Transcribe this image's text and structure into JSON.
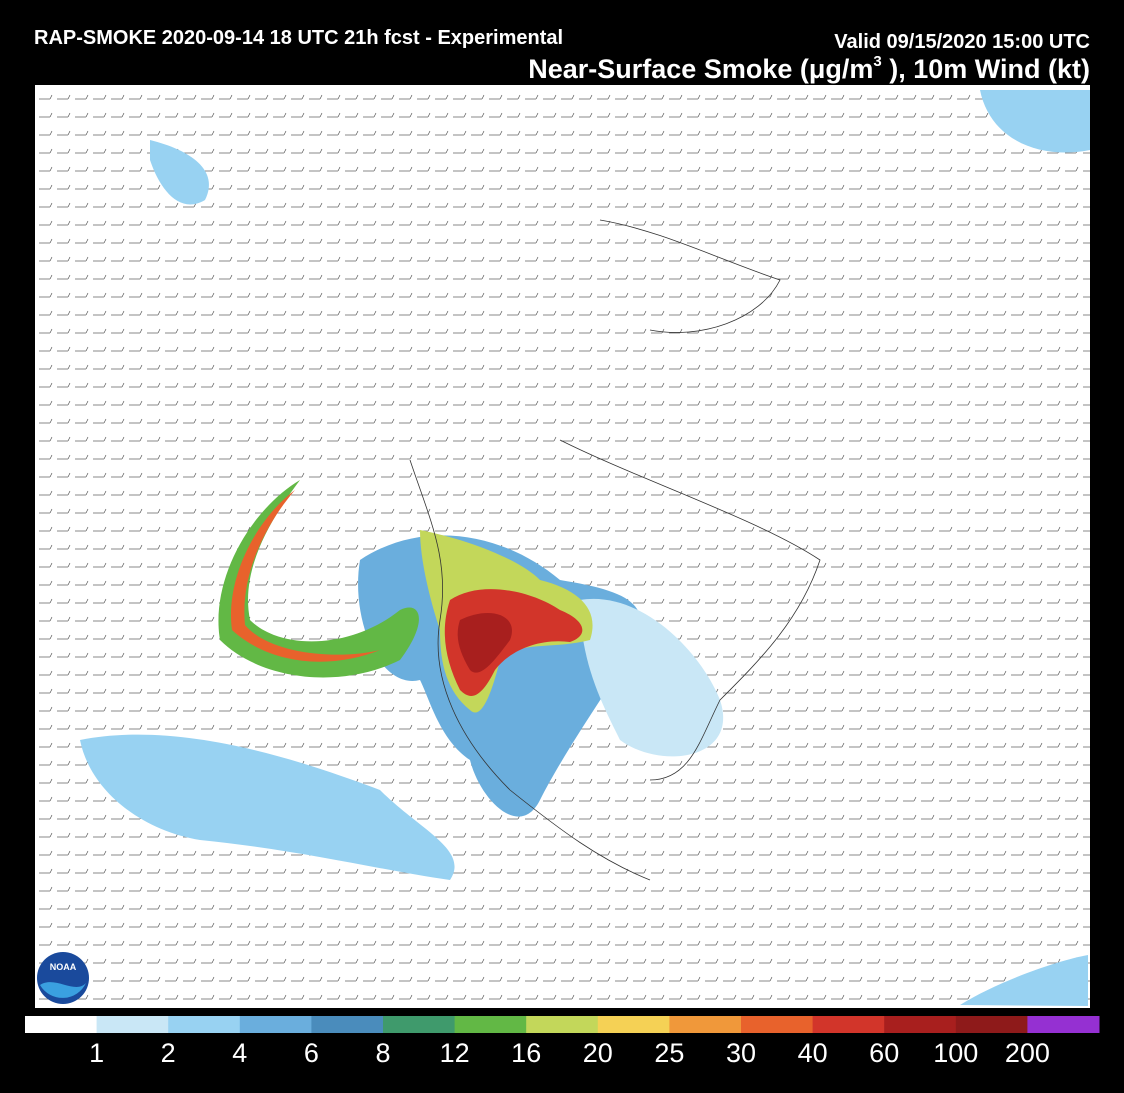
{
  "header": {
    "title": "RAP-SMOKE 2020-09-14 18 UTC 21h fcst - Experimental",
    "valid": "Valid 09/15/2020 15:00 UTC",
    "subtitle": {
      "before": "Near-Surface Smoke (",
      "unit": "μg/m",
      "sup": "3",
      "after": " ), 10m Wind (kt)"
    }
  },
  "logo": "NOAA",
  "colorbar": {
    "colors": [
      "#ffffff",
      "#c9e7f6",
      "#98d2f2",
      "#6aaedd",
      "#4a8cbc",
      "#3f9a6c",
      "#62b845",
      "#c3d75a",
      "#f5d155",
      "#f0983a",
      "#e8622c",
      "#d2352a",
      "#a81f1e",
      "#8e1a1a",
      "#9530d2"
    ],
    "labels": [
      "1",
      "2",
      "4",
      "6",
      "8",
      "12",
      "16",
      "20",
      "25",
      "30",
      "40",
      "60",
      "100",
      "200"
    ]
  }
}
